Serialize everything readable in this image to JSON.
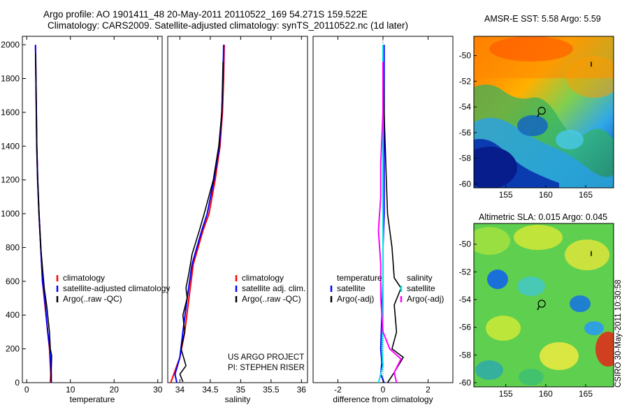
{
  "header": {
    "line1": "Argo profile: AO 1901411_48 20-May-2011 20110522_169 54.271S 159.522E",
    "line2": "Climatology: CARS2009. Satellite-adjusted climatology: synTS_20110522.nc (1d later)"
  },
  "maps": {
    "sst_title": "AMSR-E SST: 5.58 Argo: 5.59",
    "sla_title": "Altimetric SLA: 0.015 Argo: 0.045",
    "credit": "CSIRO 30-May-2011 10:30:58"
  },
  "colors": {
    "climatology": "#ff0000",
    "satellite": "#0000ff",
    "argo": "#000000",
    "satellite_diff": "#00e5e5",
    "argo_diff": "#ff00ff"
  },
  "chart_data": [
    {
      "type": "line",
      "xlabel": "temperature",
      "xlim": [
        -1,
        31
      ],
      "ylim": [
        2050,
        0
      ],
      "xticks": [
        0,
        10,
        20,
        30
      ],
      "yticks": [
        0,
        200,
        400,
        600,
        800,
        1000,
        1200,
        1400,
        1600,
        1800,
        2000
      ],
      "legend": [
        "climatology",
        "satellite-adjusted climatology",
        "Argo(..raw -QC)"
      ],
      "series": [
        {
          "name": "climatology",
          "color": "#ff0000",
          "x": [
            5.4,
            5.5,
            5.4,
            5.2,
            4.8,
            4.0,
            3.6,
            3.2,
            2.8,
            2.5,
            2.3,
            2.2,
            2.1,
            2.0
          ],
          "y": [
            0,
            50,
            100,
            200,
            300,
            500,
            600,
            800,
            1000,
            1200,
            1400,
            1600,
            1800,
            1990
          ]
        },
        {
          "name": "satellite-adjusted climatology",
          "color": "#0000ff",
          "x": [
            5.6,
            5.6,
            5.5,
            5.3,
            4.8,
            4.1,
            3.6,
            3.2,
            2.8,
            2.5,
            2.3,
            2.2,
            2.1,
            2.0
          ],
          "y": [
            0,
            50,
            100,
            200,
            300,
            500,
            600,
            800,
            1000,
            1200,
            1400,
            1600,
            1800,
            2000
          ]
        },
        {
          "name": "Argo(..raw -QC)",
          "color": "#000000",
          "x": [
            5.6,
            5.6,
            5.7,
            5.4,
            5.2,
            4.6,
            4.0,
            3.6,
            3.2,
            2.8,
            2.5,
            2.3,
            2.2,
            2.1,
            2.0
          ],
          "y": [
            5,
            60,
            160,
            200,
            300,
            450,
            560,
            680,
            800,
            1000,
            1200,
            1400,
            1600,
            1800,
            1950
          ]
        }
      ]
    },
    {
      "type": "line",
      "xlabel": "salinity",
      "xlim": [
        33.8,
        36.1
      ],
      "ylim": [
        2050,
        0
      ],
      "xticks": [
        34,
        34.5,
        35,
        35.5,
        36
      ],
      "yticks": [],
      "legend": [
        "climatology",
        "satellite adj. clim.",
        "Argo(..raw -QC)"
      ],
      "annotations": [
        "US ARGO PROJECT",
        "PI: STEPHEN RISER"
      ],
      "series": [
        {
          "name": "climatology",
          "color": "#ff0000",
          "x": [
            33.85,
            33.9,
            34.0,
            34.08,
            34.15,
            34.22,
            34.3,
            34.38,
            34.48,
            34.58,
            34.66,
            34.7,
            34.72,
            34.73
          ],
          "y": [
            0,
            50,
            150,
            300,
            500,
            700,
            800,
            900,
            1000,
            1200,
            1400,
            1600,
            1800,
            2000
          ]
        },
        {
          "name": "satellite adj. clim.",
          "color": "#0000ff",
          "x": [
            33.95,
            33.92,
            34.0,
            34.05,
            34.12,
            34.2,
            34.28,
            34.36,
            34.45,
            34.56,
            34.65,
            34.69,
            34.71,
            34.72
          ],
          "y": [
            0,
            50,
            150,
            300,
            500,
            700,
            800,
            900,
            1000,
            1200,
            1400,
            1600,
            1800,
            2000
          ]
        },
        {
          "name": "Argo(..raw -QC)",
          "color": "#000000",
          "x": [
            34.05,
            34.0,
            34.1,
            34.02,
            34.08,
            34.05,
            34.12,
            34.1,
            34.15,
            34.2,
            34.32,
            34.4,
            34.55,
            34.64,
            34.69,
            34.71
          ],
          "y": [
            5,
            50,
            100,
            200,
            300,
            400,
            500,
            560,
            650,
            760,
            900,
            1000,
            1200,
            1400,
            1600,
            1900
          ]
        }
      ]
    },
    {
      "type": "line",
      "xlabel": "difference from climatology",
      "xlim": [
        -3.1,
        3.1
      ],
      "ylim": [
        2050,
        0
      ],
      "xticks": [
        -2,
        0,
        2
      ],
      "yticks": [],
      "legend_temperature": [
        "temperature",
        "satellite",
        "Argo(-adj)"
      ],
      "legend_salinity": [
        "salinity",
        "satellite",
        "Argo(-adj)"
      ],
      "series": [
        {
          "name": "temperature satellite",
          "color": "#0000ff",
          "x": [
            0.05,
            -0.1,
            -0.05,
            -0.1,
            -0.05,
            0.0,
            0.0,
            0.05,
            0.05,
            0.05,
            0.05,
            0.05,
            0.05
          ],
          "y": [
            0,
            50,
            120,
            200,
            400,
            600,
            800,
            1000,
            1200,
            1400,
            1600,
            1800,
            2000
          ]
        },
        {
          "name": "temperature Argo(-adj)",
          "color": "#000000",
          "x": [
            0.2,
            0.5,
            0.9,
            0.4,
            0.6,
            0.5,
            0.8,
            0.5,
            0.4,
            0.2,
            0.15,
            0.1,
            0.05,
            0.0
          ],
          "y": [
            0,
            60,
            150,
            200,
            300,
            460,
            560,
            620,
            800,
            1000,
            1200,
            1400,
            1600,
            1900
          ]
        },
        {
          "name": "salinity satellite",
          "color": "#00e5e5",
          "x": [
            -0.2,
            0.0,
            -0.05,
            0.0,
            0.0,
            0.0,
            0.0,
            0.0,
            0.0,
            0.0
          ],
          "y": [
            0,
            100,
            200,
            400,
            600,
            800,
            1000,
            1400,
            1800,
            2000
          ]
        },
        {
          "name": "salinity Argo(-adj)",
          "color": "#ff00ff",
          "x": [
            0.6,
            0.5,
            0.8,
            0.3,
            0.0,
            -0.1,
            -0.1,
            -0.2,
            -0.1,
            -0.1,
            0.0,
            0.0
          ],
          "y": [
            0,
            60,
            140,
            200,
            300,
            500,
            700,
            900,
            1100,
            1300,
            1600,
            1900
          ]
        }
      ]
    },
    {
      "type": "heatmap",
      "title": "AMSR-E SST: 5.58 Argo: 5.59",
      "xlim": [
        151,
        168.5
      ],
      "ylim": [
        -60.3,
        -48.5
      ],
      "xticks": [
        155,
        160,
        165
      ],
      "yticks": [
        -50,
        -52,
        -54,
        -56,
        -58,
        -60
      ],
      "marker": {
        "lon": 159.5,
        "lat": -54.3
      }
    },
    {
      "type": "heatmap",
      "title": "Altimetric SLA: 0.015 Argo: 0.045",
      "xlim": [
        151,
        168.5
      ],
      "ylim": [
        -60.3,
        -48.5
      ],
      "xticks": [
        155,
        160,
        165
      ],
      "yticks": [
        -50,
        -52,
        -54,
        -56,
        -58,
        -60
      ],
      "marker": {
        "lon": 159.5,
        "lat": -54.3
      }
    }
  ]
}
